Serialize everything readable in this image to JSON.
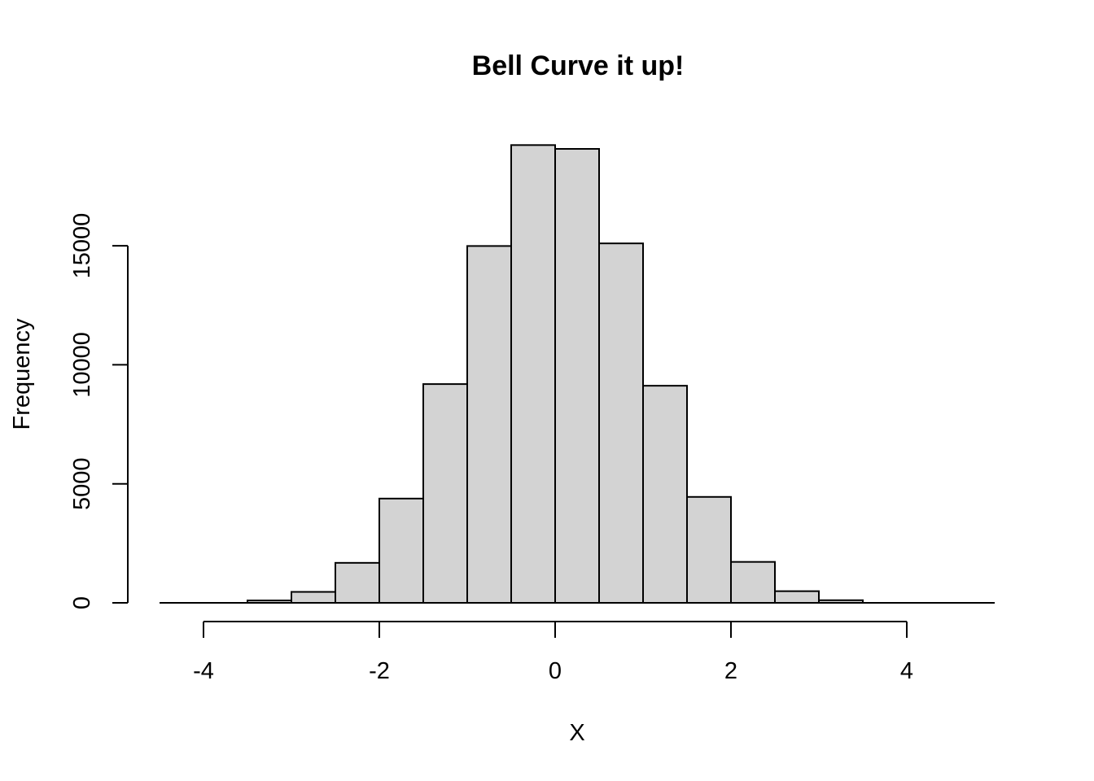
{
  "chart_data": {
    "type": "bar",
    "subtype": "histogram",
    "title": "Bell Curve it up!",
    "xlabel": "X",
    "ylabel": "Frequency",
    "xlim": [
      -4.5,
      5.0
    ],
    "ylim": [
      0,
      19000
    ],
    "x_ticks": [
      -4,
      -2,
      0,
      2,
      4
    ],
    "y_ticks": [
      0,
      5000,
      10000,
      15000
    ],
    "bin_width": 0.5,
    "bins": [
      {
        "start": -4.5,
        "end": -4.0,
        "count": 0
      },
      {
        "start": -4.0,
        "end": -3.5,
        "count": 0
      },
      {
        "start": -3.5,
        "end": -3.0,
        "count": 100
      },
      {
        "start": -3.0,
        "end": -2.5,
        "count": 460
      },
      {
        "start": -2.5,
        "end": -2.0,
        "count": 1680
      },
      {
        "start": -2.0,
        "end": -1.5,
        "count": 4380
      },
      {
        "start": -1.5,
        "end": -1.0,
        "count": 9190
      },
      {
        "start": -1.0,
        "end": -0.5,
        "count": 14990
      },
      {
        "start": -0.5,
        "end": 0.0,
        "count": 19230
      },
      {
        "start": 0.0,
        "end": 0.5,
        "count": 19070
      },
      {
        "start": 0.5,
        "end": 1.0,
        "count": 15100
      },
      {
        "start": 1.0,
        "end": 1.5,
        "count": 9120
      },
      {
        "start": 1.5,
        "end": 2.0,
        "count": 4450
      },
      {
        "start": 2.0,
        "end": 2.5,
        "count": 1720
      },
      {
        "start": 2.5,
        "end": 3.0,
        "count": 490
      },
      {
        "start": 3.0,
        "end": 3.5,
        "count": 110
      },
      {
        "start": 3.5,
        "end": 4.0,
        "count": 0
      },
      {
        "start": 4.0,
        "end": 4.5,
        "count": 0
      },
      {
        "start": 4.5,
        "end": 5.0,
        "count": 0
      }
    ],
    "colors": {
      "bar_fill": "#d3d3d3",
      "bar_stroke": "#000000"
    }
  }
}
